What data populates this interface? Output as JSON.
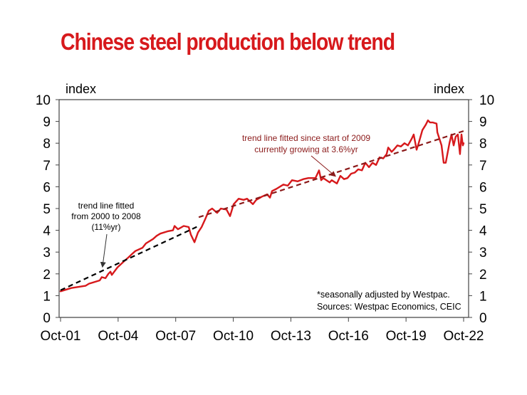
{
  "title": "Chinese steel production below trend",
  "chart_data": {
    "type": "line",
    "title": "Chinese steel production below trend",
    "ylabel_left": "index",
    "ylabel_right": "index",
    "xlabel": "",
    "x_unit": "years since Oct-2001",
    "xlim": [
      0,
      21
    ],
    "ylim": [
      0,
      10
    ],
    "yticks": [
      0,
      1,
      2,
      3,
      4,
      5,
      6,
      7,
      8,
      9,
      10
    ],
    "xticks": [
      {
        "value": 0,
        "label": "Oct-01"
      },
      {
        "value": 3,
        "label": "Oct-04"
      },
      {
        "value": 6,
        "label": "Oct-07"
      },
      {
        "value": 9,
        "label": "Oct-10"
      },
      {
        "value": 12,
        "label": "Oct-13"
      },
      {
        "value": 15,
        "label": "Oct-16"
      },
      {
        "value": 18,
        "label": "Oct-19"
      },
      {
        "value": 21,
        "label": "Oct-22"
      }
    ],
    "grid": false,
    "series": [
      {
        "name": "Chinese steel production (seasonally adjusted index)",
        "color": "#d7191c",
        "style": "solid",
        "x": [
          0.0,
          0.56,
          1.3,
          1.48,
          2.04,
          2.15,
          2.34,
          2.49,
          2.6,
          2.67,
          2.97,
          3.34,
          3.53,
          3.71,
          3.9,
          4.27,
          4.45,
          4.82,
          5.01,
          5.2,
          5.57,
          5.86,
          5.94,
          6.12,
          6.42,
          6.68,
          6.79,
          6.98,
          7.16,
          7.35,
          7.53,
          7.72,
          7.9,
          8.16,
          8.35,
          8.65,
          8.83,
          9.02,
          9.28,
          9.54,
          9.72,
          10.02,
          10.2,
          10.5,
          10.76,
          10.91,
          11.02,
          11.24,
          11.61,
          11.84,
          12.06,
          12.36,
          12.65,
          12.91,
          13.28,
          13.47,
          13.58,
          13.69,
          14.02,
          14.13,
          14.4,
          14.58,
          14.77,
          14.95,
          15.14,
          15.33,
          15.51,
          15.7,
          15.88,
          16.07,
          16.25,
          16.44,
          16.62,
          16.81,
          16.99,
          17.07,
          17.25,
          17.36,
          17.55,
          17.73,
          17.92,
          18.1,
          18.29,
          18.4,
          18.55,
          18.66,
          18.85,
          19.03,
          19.14,
          19.25,
          19.4,
          19.59,
          19.63,
          19.85,
          19.96,
          20.07,
          20.26,
          20.37,
          20.48,
          20.59,
          20.7,
          20.81,
          20.89,
          20.96,
          21.0
        ],
        "values": [
          1.2,
          1.35,
          1.45,
          1.55,
          1.7,
          1.85,
          1.8,
          2.0,
          2.1,
          1.95,
          2.3,
          2.6,
          2.75,
          2.9,
          3.05,
          3.2,
          3.4,
          3.6,
          3.75,
          3.85,
          3.95,
          4.0,
          4.2,
          4.05,
          4.2,
          4.15,
          3.8,
          3.45,
          3.9,
          4.15,
          4.5,
          4.9,
          5.0,
          4.8,
          5.0,
          4.95,
          4.65,
          5.2,
          5.45,
          5.4,
          5.45,
          5.2,
          5.4,
          5.55,
          5.65,
          5.5,
          5.8,
          5.9,
          6.1,
          6.05,
          6.3,
          6.25,
          6.35,
          6.4,
          6.4,
          6.75,
          6.3,
          6.4,
          6.2,
          6.3,
          6.15,
          6.5,
          6.35,
          6.4,
          6.6,
          6.65,
          6.8,
          6.75,
          7.1,
          6.9,
          7.1,
          7.0,
          7.35,
          7.3,
          7.5,
          7.8,
          7.6,
          7.7,
          7.9,
          7.85,
          8.0,
          7.9,
          8.2,
          8.4,
          7.7,
          8.0,
          8.6,
          8.85,
          9.05,
          8.95,
          8.95,
          8.9,
          8.5,
          7.9,
          7.1,
          7.1,
          8.0,
          8.4,
          7.9,
          8.3,
          8.4,
          7.5,
          8.4,
          7.9,
          8.0
        ]
      },
      {
        "name": "Trend line fitted from 2000 to 2008 (11%yr)",
        "color": "#000000",
        "style": "dashed",
        "x": [
          0.0,
          7.2
        ],
        "values": [
          1.25,
          4.2
        ]
      },
      {
        "name": "Trend line fitted since start of 2009 (3.6%yr)",
        "color": "#8b1a1a",
        "style": "dashed",
        "x": [
          7.2,
          21.15
        ],
        "values": [
          4.6,
          8.6
        ]
      }
    ],
    "annotations": [
      {
        "lines": [
          "trend line fitted since start of 2009",
          "currently growing at 3.6%yr"
        ],
        "color": "#8b1a1a",
        "arrow_to": {
          "x": 14.3,
          "y": 6.5
        }
      },
      {
        "lines": [
          "trend line fitted",
          "from 2000 to 2008",
          "(11%yr)"
        ],
        "color": "#000000",
        "arrow_to": {
          "x": 2.3,
          "y": 2.15
        }
      }
    ],
    "footnote": [
      "*seasonally adjusted by Westpac.",
      "Sources: Westpac Economics, CEIC"
    ]
  }
}
